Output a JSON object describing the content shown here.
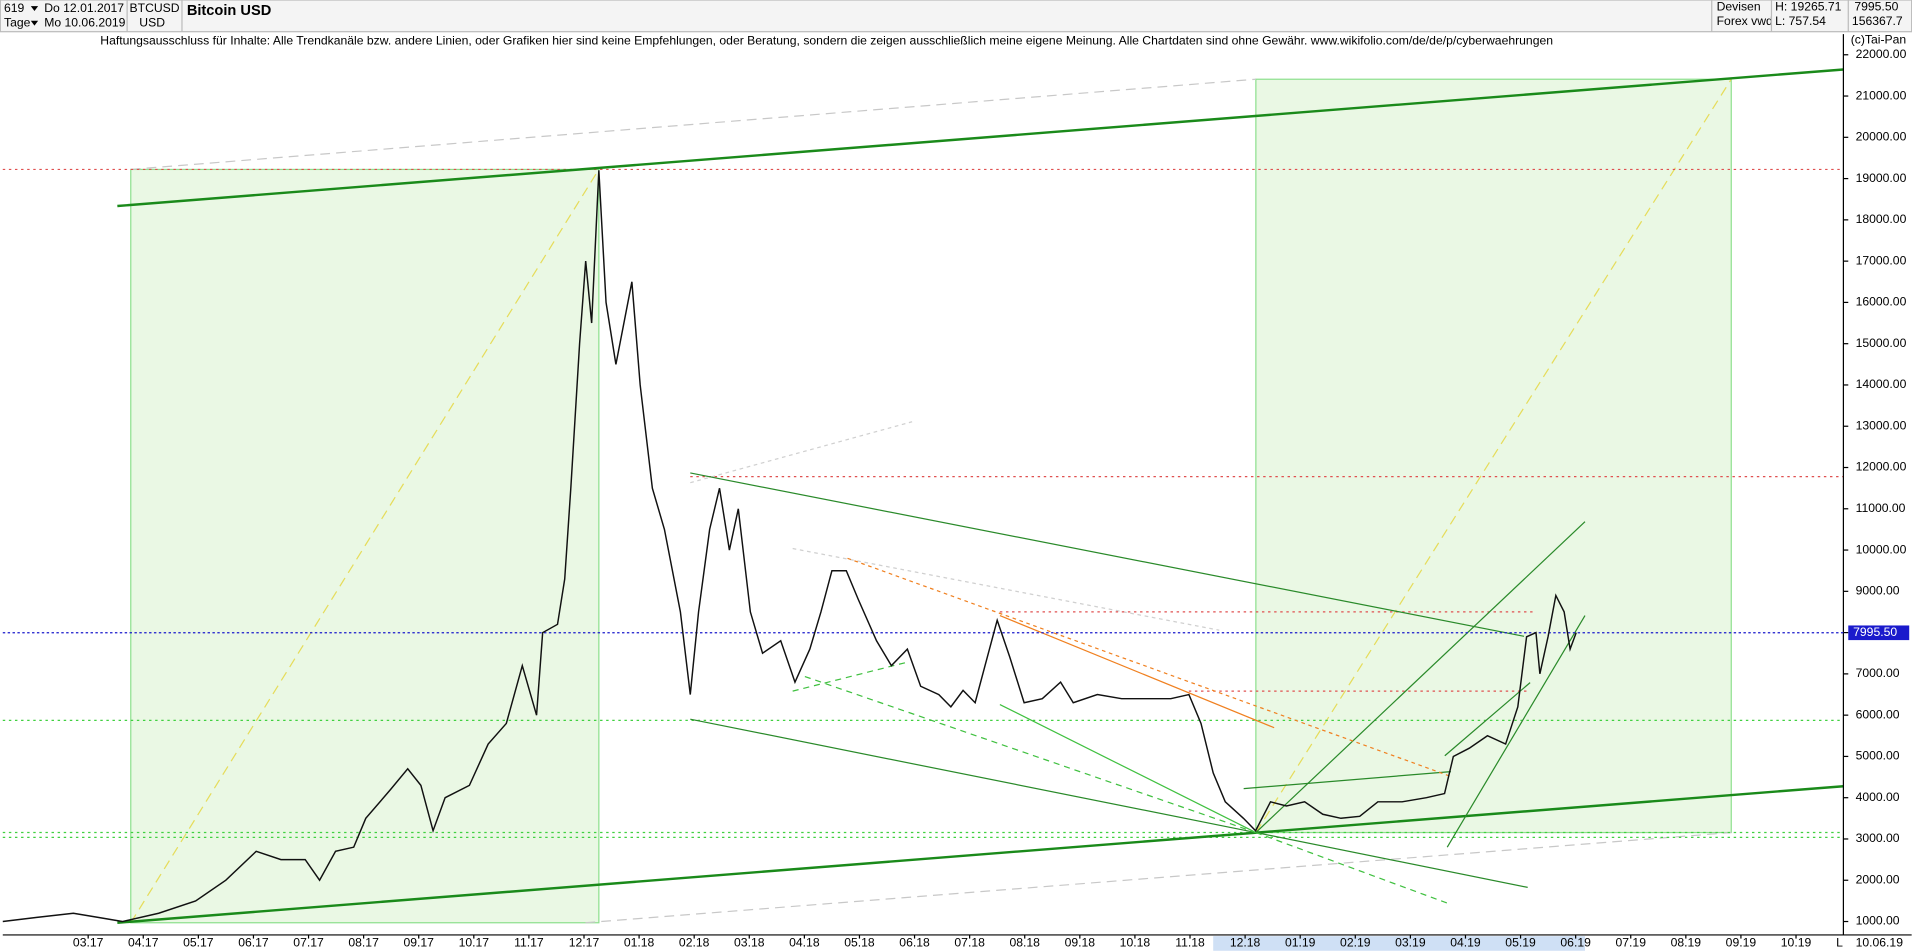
{
  "header": {
    "count": "619",
    "from": "Do 12.01.2017",
    "period": "Tage",
    "to": "Mo 10.06.2019",
    "symbol": "BTCUSD",
    "currency": "USD",
    "name": "Bitcoin USD",
    "market": "Devisen",
    "source": "Forex vwd",
    "high": "H: 19265.71",
    "low": "L: 757.54",
    "last": "7995.50",
    "volume": "156367.7",
    "disclaimer": "Haftungsausschluss für Inhalte: Alle Trendkanäle bzw. andere Linien, oder Grafiken hier sind keine Empfehlungen, oder Beratung, sondern die zeigen ausschließlich meine eigene Meinung. Alle Chartdaten sind ohne Gewähr.  www.wikifolio.com/de/de/p/cyberwaehrungen",
    "copyright": "(c)Tai-Pan",
    "end_date": "10.06.19",
    "scale_mode": "L"
  },
  "chart_data": {
    "type": "line",
    "color": "#111111",
    "x": [
      -1.55,
      -0.93,
      -0.27,
      0.18,
      0.62,
      1.28,
      1.95,
      2.5,
      3.05,
      3.5,
      3.94,
      4.2,
      4.49,
      4.82,
      5.04,
      5.49,
      5.8,
      6.04,
      6.26,
      6.48,
      6.92,
      7.26,
      7.59,
      7.88,
      8.14,
      8.25,
      8.52,
      8.65,
      8.76,
      8.92,
      9.03,
      9.14,
      9.27,
      9.4,
      9.58,
      9.87,
      10.02,
      10.24,
      10.46,
      10.75,
      10.93,
      11.08,
      11.28,
      11.46,
      11.64,
      11.8,
      12.02,
      12.24,
      12.57,
      12.83,
      13.1,
      13.3,
      13.5,
      13.76,
      13.98,
      14.31,
      14.58,
      14.87,
      15.11,
      15.44,
      15.66,
      15.88,
      16.1,
      16.28,
      16.5,
      16.73,
      16.99,
      17.32,
      17.65,
      17.88,
      18.32,
      18.76,
      19.2,
      19.65,
      19.98,
      20.2,
      20.42,
      20.64,
      20.97,
      21.19,
      21.46,
      21.75,
      22.08,
      22.41,
      22.74,
      23.08,
      23.41,
      23.85,
      24.29,
      24.62,
      24.78,
      25.07,
      25.4,
      25.73,
      25.95,
      26.11,
      26.28,
      26.35,
      26.5,
      26.64,
      26.79,
      26.9,
      27.01
    ],
    "values": [
      1000,
      1100,
      1200,
      1100,
      1000,
      1200,
      1500,
      2000,
      2700,
      2500,
      2500,
      2000,
      2700,
      2800,
      3500,
      4200,
      4700,
      4300,
      3200,
      4000,
      4300,
      5300,
      5800,
      7200,
      6000,
      8000,
      8200,
      9300,
      11500,
      15000,
      17000,
      15500,
      19200,
      16000,
      14500,
      16500,
      14000,
      11500,
      10500,
      8500,
      6500,
      8500,
      10500,
      11500,
      10000,
      11000,
      8500,
      7500,
      7800,
      6800,
      7600,
      8500,
      9500,
      9500,
      8800,
      7800,
      7200,
      7600,
      6700,
      6500,
      6200,
      6600,
      6300,
      7200,
      8300,
      7400,
      6300,
      6400,
      6800,
      6300,
      6500,
      6400,
      6400,
      6400,
      6500,
      5800,
      4600,
      3900,
      3500,
      3200,
      3900,
      3800,
      3900,
      3600,
      3500,
      3550,
      3900,
      3900,
      4000,
      4100,
      5000,
      5200,
      5500,
      5300,
      6200,
      7900,
      8000,
      7000,
      7900,
      8900,
      8500,
      7600,
      8000
    ],
    "xlim": [
      -1.55,
      31.86
    ],
    "xticks": [
      {
        "value": 0,
        "label": "03.17"
      },
      {
        "value": 1,
        "label": "04.17"
      },
      {
        "value": 2,
        "label": "05.17"
      },
      {
        "value": 3,
        "label": "06.17"
      },
      {
        "value": 4,
        "label": "07.17"
      },
      {
        "value": 5,
        "label": "08.17"
      },
      {
        "value": 6,
        "label": "09.17"
      },
      {
        "value": 7,
        "label": "10.17"
      },
      {
        "value": 8,
        "label": "11.17"
      },
      {
        "value": 9,
        "label": "12.17"
      },
      {
        "value": 10,
        "label": "01.18"
      },
      {
        "value": 11,
        "label": "02.18"
      },
      {
        "value": 12,
        "label": "03.18"
      },
      {
        "value": 13,
        "label": "04.18"
      },
      {
        "value": 14,
        "label": "05.18"
      },
      {
        "value": 15,
        "label": "06.18"
      },
      {
        "value": 16,
        "label": "07.18"
      },
      {
        "value": 17,
        "label": "08.18"
      },
      {
        "value": 18,
        "label": "09.18"
      },
      {
        "value": 19,
        "label": "10.18"
      },
      {
        "value": 20,
        "label": "11.18"
      },
      {
        "value": 21,
        "label": "12.18"
      },
      {
        "value": 22,
        "label": "01.19"
      },
      {
        "value": 23,
        "label": "02.19"
      },
      {
        "value": 24,
        "label": "03.19"
      },
      {
        "value": 25,
        "label": "04.19"
      },
      {
        "value": 26,
        "label": "05.19"
      },
      {
        "value": 27,
        "label": "06.19"
      },
      {
        "value": 28,
        "label": "07.19"
      },
      {
        "value": 29,
        "label": "08.19"
      },
      {
        "value": 30,
        "label": "09.19"
      },
      {
        "value": 31,
        "label": "10.19"
      }
    ],
    "ylim": [
      675,
      22500
    ],
    "yticks": [
      {
        "value": 1000,
        "label": "1000.00"
      },
      {
        "value": 2000,
        "label": "2000.00"
      },
      {
        "value": 3000,
        "label": "3000.00"
      },
      {
        "value": 4000,
        "label": "4000.00"
      },
      {
        "value": 5000,
        "label": "5000.00"
      },
      {
        "value": 6000,
        "label": "6000.00"
      },
      {
        "value": 7000,
        "label": "7000.00"
      },
      {
        "value": 8000,
        "label": "8000.00"
      },
      {
        "value": 9000,
        "label": "9000.00"
      },
      {
        "value": 10000,
        "label": "10000.00"
      },
      {
        "value": 11000,
        "label": "11000.00"
      },
      {
        "value": 12000,
        "label": "12000.00"
      },
      {
        "value": 13000,
        "label": "13000.00"
      },
      {
        "value": 14000,
        "label": "14000.00"
      },
      {
        "value": 15000,
        "label": "15000.00"
      },
      {
        "value": 16000,
        "label": "16000.00"
      },
      {
        "value": 17000,
        "label": "17000.00"
      },
      {
        "value": 18000,
        "label": "18000.00"
      },
      {
        "value": 19000,
        "label": "19000.00"
      },
      {
        "value": 20000,
        "label": "20000.00"
      },
      {
        "value": 21000,
        "label": "21000.00"
      },
      {
        "value": 22000,
        "label": "22000.00"
      }
    ],
    "last_price": {
      "value": 7995.5,
      "label": "7995.50"
    },
    "last_price_color": "#1a1acc"
  }
}
